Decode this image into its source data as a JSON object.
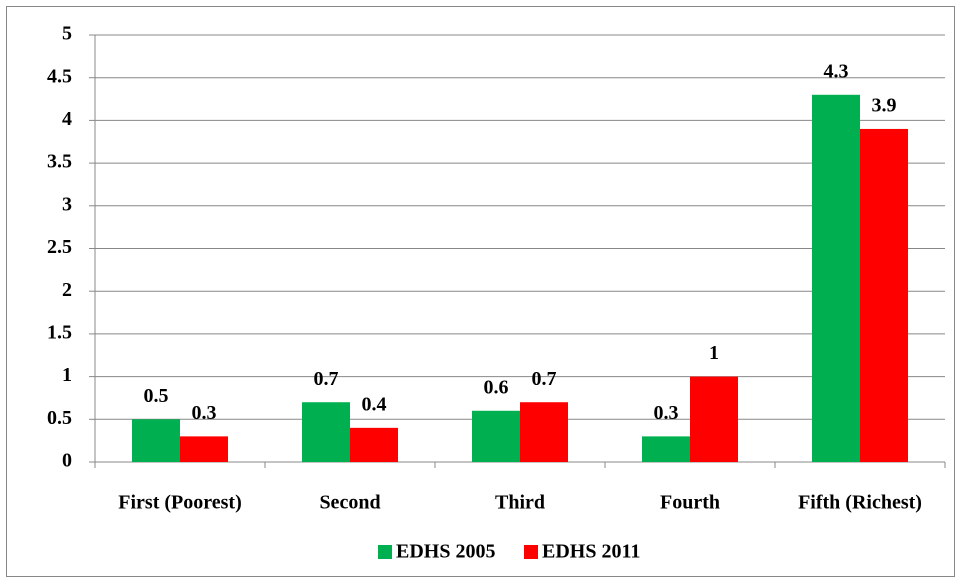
{
  "chart_data": {
    "type": "bar",
    "categories": [
      "First (Poorest)",
      "Second",
      "Third",
      "Fourth",
      "Fifth (Richest)"
    ],
    "series": [
      {
        "name": "EDHS 2005",
        "color": "#00b050",
        "values": [
          0.5,
          0.7,
          0.6,
          0.3,
          4.3
        ]
      },
      {
        "name": "EDHS 2011",
        "color": "#ff0000",
        "values": [
          0.3,
          0.4,
          0.7,
          1,
          3.9
        ]
      }
    ],
    "ylim": [
      0,
      5
    ],
    "yticks": [
      0,
      0.5,
      1,
      1.5,
      2,
      2.5,
      3,
      3.5,
      4,
      4.5,
      5
    ],
    "grid": true,
    "legend": "bottom"
  }
}
